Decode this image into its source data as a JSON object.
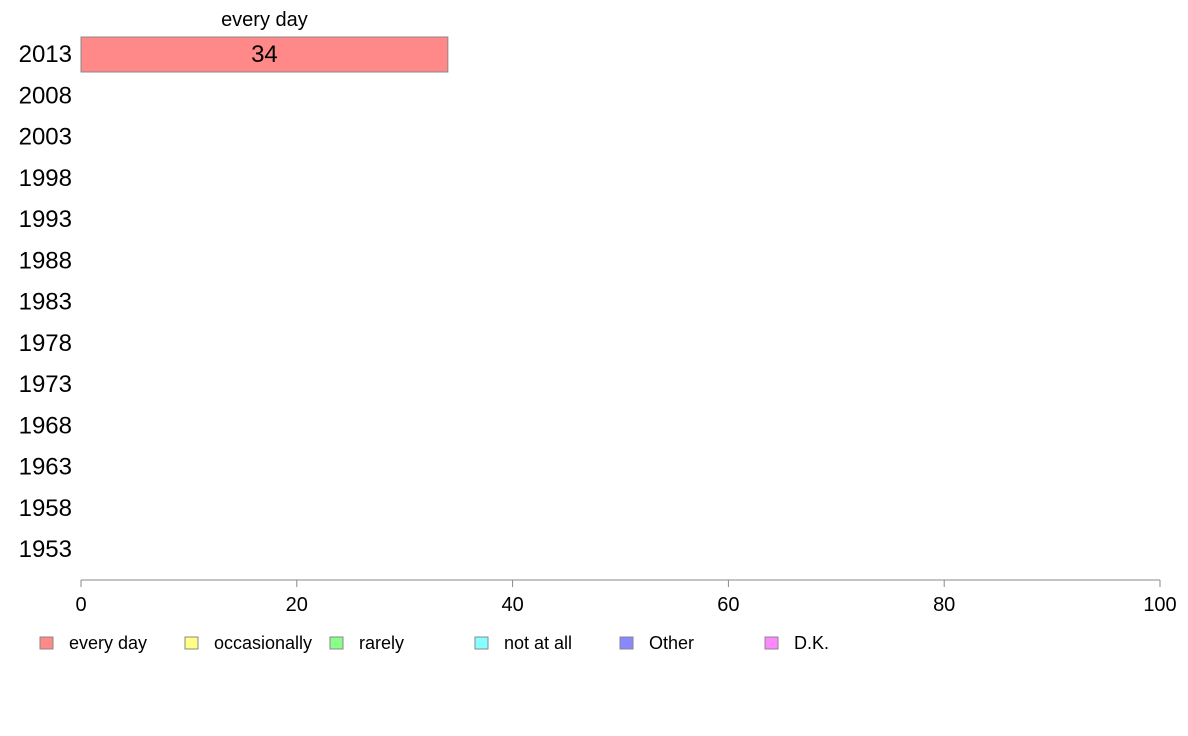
{
  "chart_data": {
    "type": "bar",
    "orientation": "horizontal",
    "stacked": true,
    "categories": [
      "2013",
      "2008",
      "2003",
      "1998",
      "1993",
      "1988",
      "1983",
      "1978",
      "1973",
      "1968",
      "1963",
      "1958",
      "1953"
    ],
    "series": [
      {
        "name": "every day",
        "color": "#ff8888",
        "values": [
          34,
          null,
          null,
          null,
          null,
          null,
          null,
          null,
          null,
          null,
          null,
          null,
          null
        ]
      },
      {
        "name": "occasionally",
        "color": "#ffff88",
        "values": [
          null,
          null,
          null,
          null,
          null,
          null,
          null,
          null,
          null,
          null,
          null,
          null,
          null
        ]
      },
      {
        "name": "rarely",
        "color": "#88ff88",
        "values": [
          null,
          null,
          null,
          null,
          null,
          null,
          null,
          null,
          null,
          null,
          null,
          null,
          null
        ]
      },
      {
        "name": "not at all",
        "color": "#88ffff",
        "values": [
          null,
          null,
          null,
          null,
          null,
          null,
          null,
          null,
          null,
          null,
          null,
          null,
          null
        ]
      },
      {
        "name": "Other",
        "color": "#8888ff",
        "values": [
          null,
          null,
          null,
          null,
          null,
          null,
          null,
          null,
          null,
          null,
          null,
          null,
          null
        ]
      },
      {
        "name": "D.K.",
        "color": "#ff88ff",
        "values": [
          null,
          null,
          null,
          null,
          null,
          null,
          null,
          null,
          null,
          null,
          null,
          null,
          null
        ]
      }
    ],
    "data_labels": [
      {
        "category": "2013",
        "series": "every day",
        "text": "34"
      }
    ],
    "segment_header": "every day",
    "xlim": [
      0,
      100
    ],
    "xticks": [
      0,
      20,
      40,
      60,
      80,
      100
    ],
    "grid": false,
    "legend_position": "bottom"
  }
}
